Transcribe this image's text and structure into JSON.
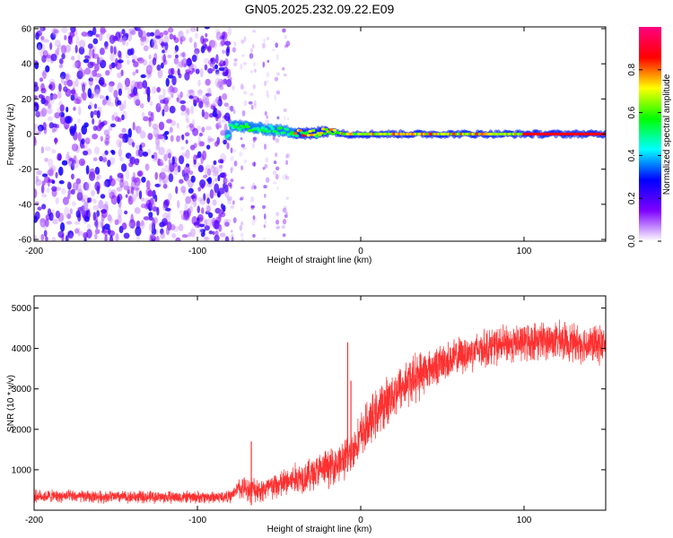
{
  "title": "GN05.2025.232.09.22.E09",
  "chart_data": [
    {
      "type": "heatmap",
      "xlabel": "Height of straight line (km)",
      "ylabel": "Frequency (Hz)",
      "xlim": [
        -200,
        150
      ],
      "ylim": [
        -61,
        61
      ],
      "xticks": [
        -200,
        -100,
        0,
        100
      ],
      "yticks": [
        -60,
        -40,
        -20,
        0,
        20,
        40,
        60
      ],
      "colorbar": {
        "label": "Normalized spectral amplitude",
        "range": [
          0,
          1
        ],
        "ticks": [
          0.0,
          0.2,
          0.4,
          0.6,
          0.8
        ],
        "tick_labels": [
          "0.0",
          "0.2",
          "0.4",
          "0.6",
          "0.8"
        ],
        "colors": [
          "#ffffff",
          "#7f00ff",
          "#0000ff",
          "#00ffff",
          "#00ff00",
          "#ffff00",
          "#ff0000",
          "#ff0080"
        ]
      },
      "description_points": {
        "noise_region_x": [
          -200,
          -80
        ],
        "sparse_region_x": [
          -80,
          -45
        ],
        "signal_track": [
          {
            "x": -80,
            "y": 5
          },
          {
            "x": -70,
            "y": 4
          },
          {
            "x": -60,
            "y": 3
          },
          {
            "x": -50,
            "y": 2
          },
          {
            "x": -40,
            "y": 1
          },
          {
            "x": -30,
            "y": 0
          },
          {
            "x": -20,
            "y": 2
          },
          {
            "x": -10,
            "y": 0
          },
          {
            "x": 0,
            "y": 0
          },
          {
            "x": 50,
            "y": 0
          },
          {
            "x": 100,
            "y": 0
          },
          {
            "x": 150,
            "y": 0
          }
        ]
      }
    },
    {
      "type": "line",
      "xlabel": "Height of straight line (km)",
      "ylabel": "SNR (10 * v/v)",
      "xlim": [
        -200,
        150
      ],
      "ylim": [
        0,
        5300
      ],
      "xticks": [
        -200,
        -100,
        0,
        100
      ],
      "yticks": [
        1000,
        2000,
        3000,
        4000,
        5000
      ],
      "color": "#ff3030",
      "trend": {
        "x": [
          -200,
          -150,
          -100,
          -80,
          -75,
          -60,
          -50,
          -40,
          -30,
          -20,
          -10,
          -5,
          0,
          10,
          20,
          30,
          40,
          50,
          60,
          70,
          80,
          90,
          100,
          110,
          120,
          130,
          140,
          150
        ],
        "y": [
          350,
          330,
          320,
          330,
          550,
          500,
          620,
          780,
          900,
          1050,
          1250,
          1500,
          1850,
          2400,
          2900,
          3200,
          3450,
          3650,
          3800,
          3950,
          4050,
          4100,
          4150,
          4200,
          4200,
          4150,
          4100,
          4100
        ]
      },
      "spikes": [
        {
          "x": -67,
          "y": 1700
        },
        {
          "x": -8,
          "y": 4150
        },
        {
          "x": -6,
          "y": 3200
        }
      ]
    }
  ]
}
